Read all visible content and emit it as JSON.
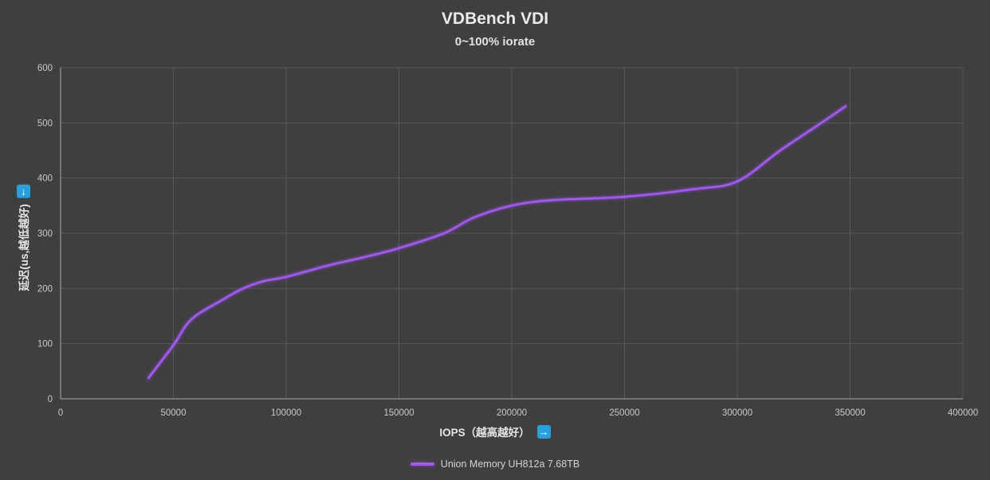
{
  "chart_data": {
    "type": "line",
    "title": "VDBench VDI",
    "subtitle": "0~100% iorate",
    "xlabel": "IOPS（越高越好）",
    "ylabel": "延迟(us,越低越好)",
    "xlim": [
      0,
      400000
    ],
    "ylim": [
      0,
      600
    ],
    "x_tick_step": 50000,
    "y_tick_step": 100,
    "x_tick_labels": [
      "0",
      "50000",
      "100000",
      "150000",
      "200000",
      "250000",
      "300000",
      "350000",
      "400000"
    ],
    "y_tick_labels": [
      "0",
      "100",
      "200",
      "300",
      "400",
      "500",
      "600"
    ],
    "grid": true,
    "legend_position": "bottom",
    "series": [
      {
        "name": "Union Memory UH812a 7.68TB",
        "color": "#a05ce6",
        "points": [
          [
            39000,
            38
          ],
          [
            50000,
            97
          ],
          [
            58000,
            144
          ],
          [
            72000,
            180
          ],
          [
            81000,
            200
          ],
          [
            90000,
            213
          ],
          [
            100000,
            221
          ],
          [
            119000,
            242
          ],
          [
            135000,
            257
          ],
          [
            150000,
            273
          ],
          [
            170000,
            300
          ],
          [
            183000,
            328
          ],
          [
            200000,
            350
          ],
          [
            218000,
            360
          ],
          [
            250000,
            366
          ],
          [
            281000,
            380
          ],
          [
            300000,
            394
          ],
          [
            319000,
            450
          ],
          [
            338000,
            502
          ],
          [
            348000,
            530
          ]
        ]
      }
    ]
  },
  "icons": {
    "down_arrow": "↓",
    "right_arrow": "→"
  },
  "colors": {
    "background": "#3f3f3f",
    "gridline": "#57575b",
    "axis_line": "#a9a9a9",
    "tick_text": "#c9c9c9",
    "title_text": "#eaeaea",
    "icon_blue": "#2aa0da",
    "series_purple": "#a05ce6"
  }
}
